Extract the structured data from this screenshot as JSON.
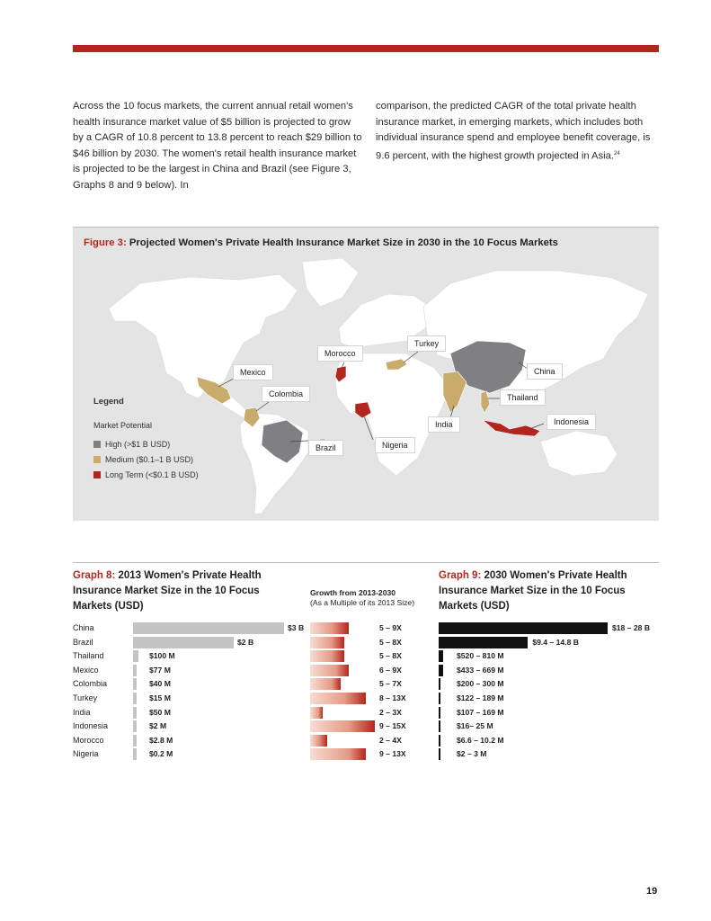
{
  "body_text": {
    "left": "Across the 10 focus markets, the current annual retail women's health insurance market value of $5 billion is projected to grow by a CAGR of 10.8 percent to 13.8 percent to reach $29 billion to $46 billion by 2030. The women's retail health insurance market is projected to be the largest in China and Brazil (see Figure 3, Graphs 8 and 9 below). In",
    "right": "comparison, the predicted CAGR of the total private health insurance market, in emerging markets, which includes both individual insurance spend and employee benefit coverage, is 9.6 percent, with the highest growth projected in Asia.",
    "footnote": "24"
  },
  "figure3": {
    "label": "Figure 3:",
    "title": "Projected Women's Private Health Insurance Market Size in 2030 in the 10 Focus Markets",
    "countries": [
      "Turkey",
      "Morocco",
      "Mexico",
      "China",
      "Colombia",
      "Thailand",
      "India",
      "Indonesia",
      "Nigeria",
      "Brazil"
    ],
    "legend": {
      "title": "Legend",
      "subtitle": "Market Potential",
      "items": [
        {
          "label": "High (>$1 B USD)",
          "color": "#807f83"
        },
        {
          "label": "Medium ($0.1–1 B USD)",
          "color": "#c9ab6b"
        },
        {
          "label": "Long Term (<$0.1 B USD)",
          "color": "#b3261e"
        }
      ]
    }
  },
  "graph8": {
    "label": "Graph 8:",
    "title": "2013 Women's Private Health Insurance Market Size in the 10 Focus Markets (USD)"
  },
  "growth": {
    "title": "Growth from 2013-2030",
    "subtitle": "(As a Multiple of its 2013 Size)"
  },
  "graph9": {
    "label": "Graph 9:",
    "title": "2030 Women's Private Health Insurance Market Size in the 10 Focus Markets (USD)"
  },
  "chart_data": [
    {
      "type": "bar",
      "categories": [
        "China",
        "Brazil",
        "Thailand",
        "Mexico",
        "Colombia",
        "Turkey",
        "India",
        "Indonesia",
        "Morocco",
        "Nigeria"
      ],
      "values_musd": [
        3000,
        2000,
        100,
        77,
        40,
        15,
        50,
        2,
        2.8,
        0.2
      ],
      "labels": [
        "$3 B",
        "$2 B",
        "$100 M",
        "$77 M",
        "$40 M",
        "$15 M",
        "$50 M",
        "$2 M",
        "$2.8 M",
        "$0.2 M"
      ]
    },
    {
      "type": "bar",
      "categories": [
        "China",
        "Brazil",
        "Thailand",
        "Mexico",
        "Colombia",
        "Turkey",
        "India",
        "Indonesia",
        "Morocco",
        "Nigeria"
      ],
      "low": [
        5,
        5,
        5,
        6,
        5,
        8,
        2,
        9,
        2,
        9
      ],
      "high": [
        9,
        8,
        8,
        9,
        7,
        13,
        3,
        15,
        4,
        13
      ],
      "labels": [
        "5 – 9X",
        "5 – 8X",
        "5 – 8X",
        "6 – 9X",
        "5 – 7X",
        "8 – 13X",
        "2 – 3X",
        "9 – 15X",
        "2 – 4X",
        "9 – 13X"
      ]
    },
    {
      "type": "bar",
      "categories": [
        "China",
        "Brazil",
        "Thailand",
        "Mexico",
        "Colombia",
        "Turkey",
        "India",
        "Indonesia",
        "Morocco",
        "Nigeria"
      ],
      "low_musd": [
        18000,
        9400,
        520,
        433,
        200,
        122,
        107,
        16,
        6.6,
        2
      ],
      "high_musd": [
        28000,
        14800,
        810,
        669,
        300,
        189,
        169,
        25,
        10.2,
        3
      ],
      "labels": [
        "$18 – 28 B",
        "$9.4 – 14.8 B",
        "$520 – 810 M",
        "$433 – 669 M",
        "$200 – 300 M",
        "$122 – 189 M",
        "$107 – 169 M",
        "$16– 25 M",
        "$6.6 – 10.2 M",
        "$2 – 3 M"
      ]
    }
  ],
  "page_number": "19"
}
